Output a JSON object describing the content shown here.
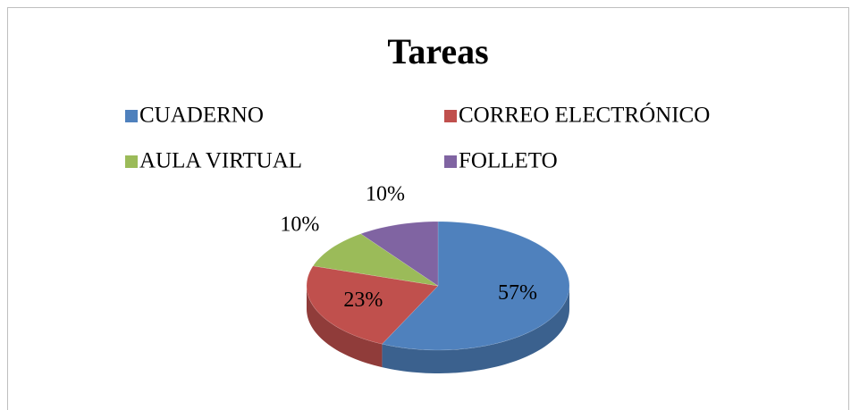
{
  "chart_data": {
    "type": "pie",
    "title": "Tareas",
    "categories": [
      "CUADERNO",
      "CORREO ELECTRÓNICO",
      "AULA VIRTUAL",
      "FOLLETO"
    ],
    "values": [
      57,
      23,
      10,
      10
    ],
    "value_labels": [
      "57%",
      "23%",
      "10%",
      "10%"
    ],
    "colors": [
      "#4f81bd",
      "#c0504d",
      "#9bbb59",
      "#8064a2"
    ],
    "legend": "top"
  }
}
